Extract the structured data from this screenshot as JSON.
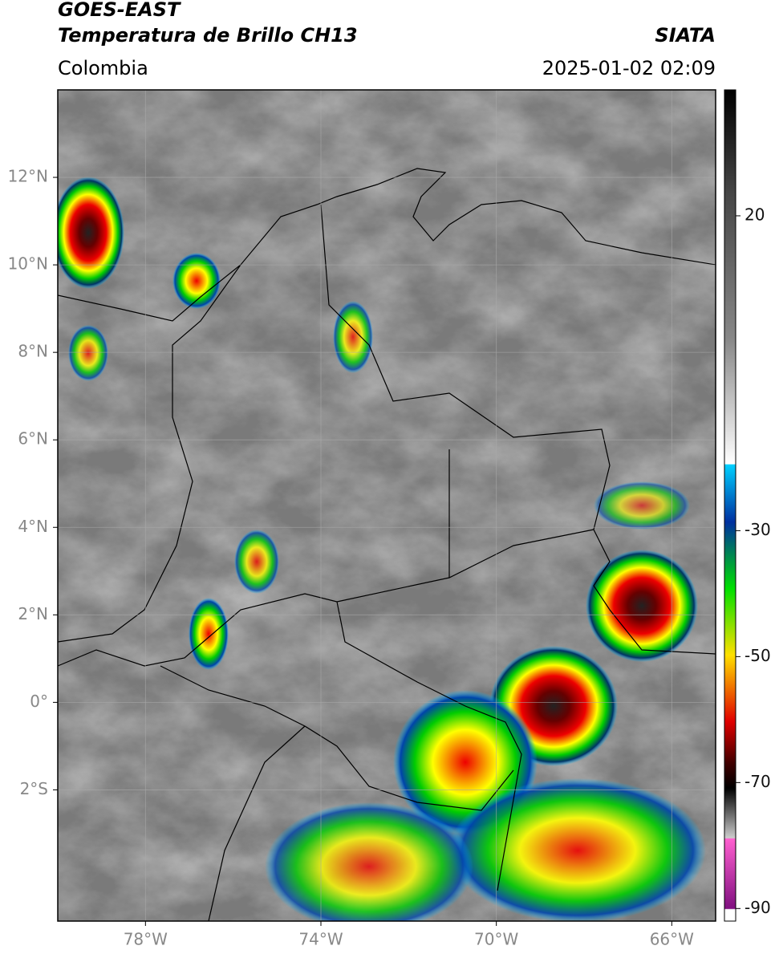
{
  "header": {
    "title": "GOES-EAST",
    "subtitle": "Temperatura de Brillo CH13",
    "region": "Colombia",
    "source": "SIATA",
    "datetime": "2025-01-02 02:09"
  },
  "map": {
    "lonlim": [
      -80,
      -65
    ],
    "latlim": [
      -5,
      14
    ],
    "xticks": [
      {
        "value": -78,
        "label": "78°W"
      },
      {
        "value": -74,
        "label": "74°W"
      },
      {
        "value": -70,
        "label": "70°W"
      },
      {
        "value": -66,
        "label": "66°W"
      }
    ],
    "yticks": [
      {
        "value": 12,
        "label": "12°N"
      },
      {
        "value": 10,
        "label": "10°N"
      },
      {
        "value": 8,
        "label": "8°N"
      },
      {
        "value": 6,
        "label": "6°N"
      },
      {
        "value": 4,
        "label": "4°N"
      },
      {
        "value": 2,
        "label": "2°N"
      },
      {
        "value": 0,
        "label": "0°"
      },
      {
        "value": -2,
        "label": "2°S"
      }
    ],
    "grid": true
  },
  "colorbar": {
    "lim": [
      -92,
      40
    ],
    "ticks": [
      20,
      -30,
      -50,
      -70,
      -90
    ]
  }
}
